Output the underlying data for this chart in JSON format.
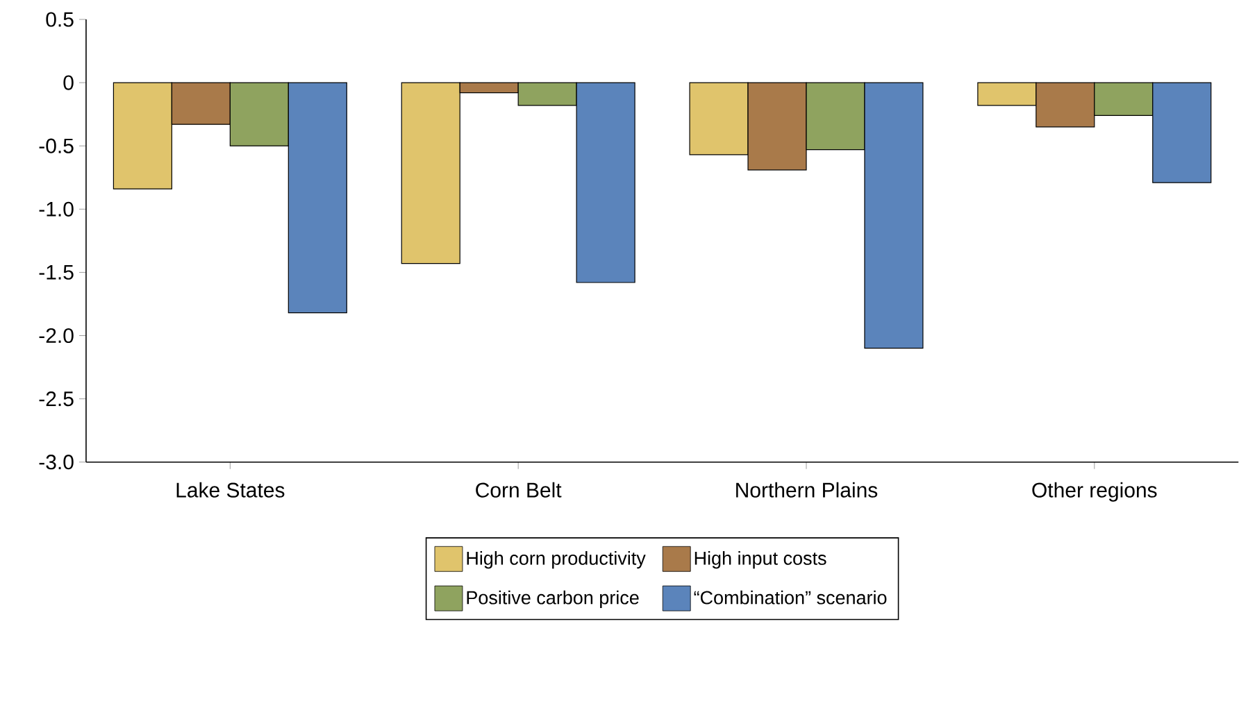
{
  "chart_data": {
    "type": "bar",
    "categories": [
      "Lake States",
      "Corn Belt",
      "Northern Plains",
      "Other regions"
    ],
    "series": [
      {
        "name": "High corn productivity",
        "color": "#e0c46c",
        "values": [
          -0.84,
          -1.43,
          -0.57,
          -0.18
        ]
      },
      {
        "name": "High input costs",
        "color": "#a97a4a",
        "values": [
          -0.33,
          -0.08,
          -0.69,
          -0.35
        ]
      },
      {
        "name": "Positive carbon price",
        "color": "#8fa35f",
        "values": [
          -0.5,
          -0.18,
          -0.53,
          -0.26
        ]
      },
      {
        "name": "“Combination” scenario",
        "color": "#5b84bb",
        "values": [
          -1.82,
          -1.58,
          -2.1,
          -0.79
        ]
      }
    ],
    "ylim": [
      -3,
      0.5
    ],
    "yticks": [
      0.5,
      0,
      -0.5,
      {
        "value": -1,
        "label": "-1.0"
      },
      -1.5,
      {
        "value": -2,
        "label": "-2.0"
      },
      -2.5,
      {
        "value": -3,
        "label": "-3.0"
      }
    ],
    "grid": false,
    "legend": "bottom"
  }
}
